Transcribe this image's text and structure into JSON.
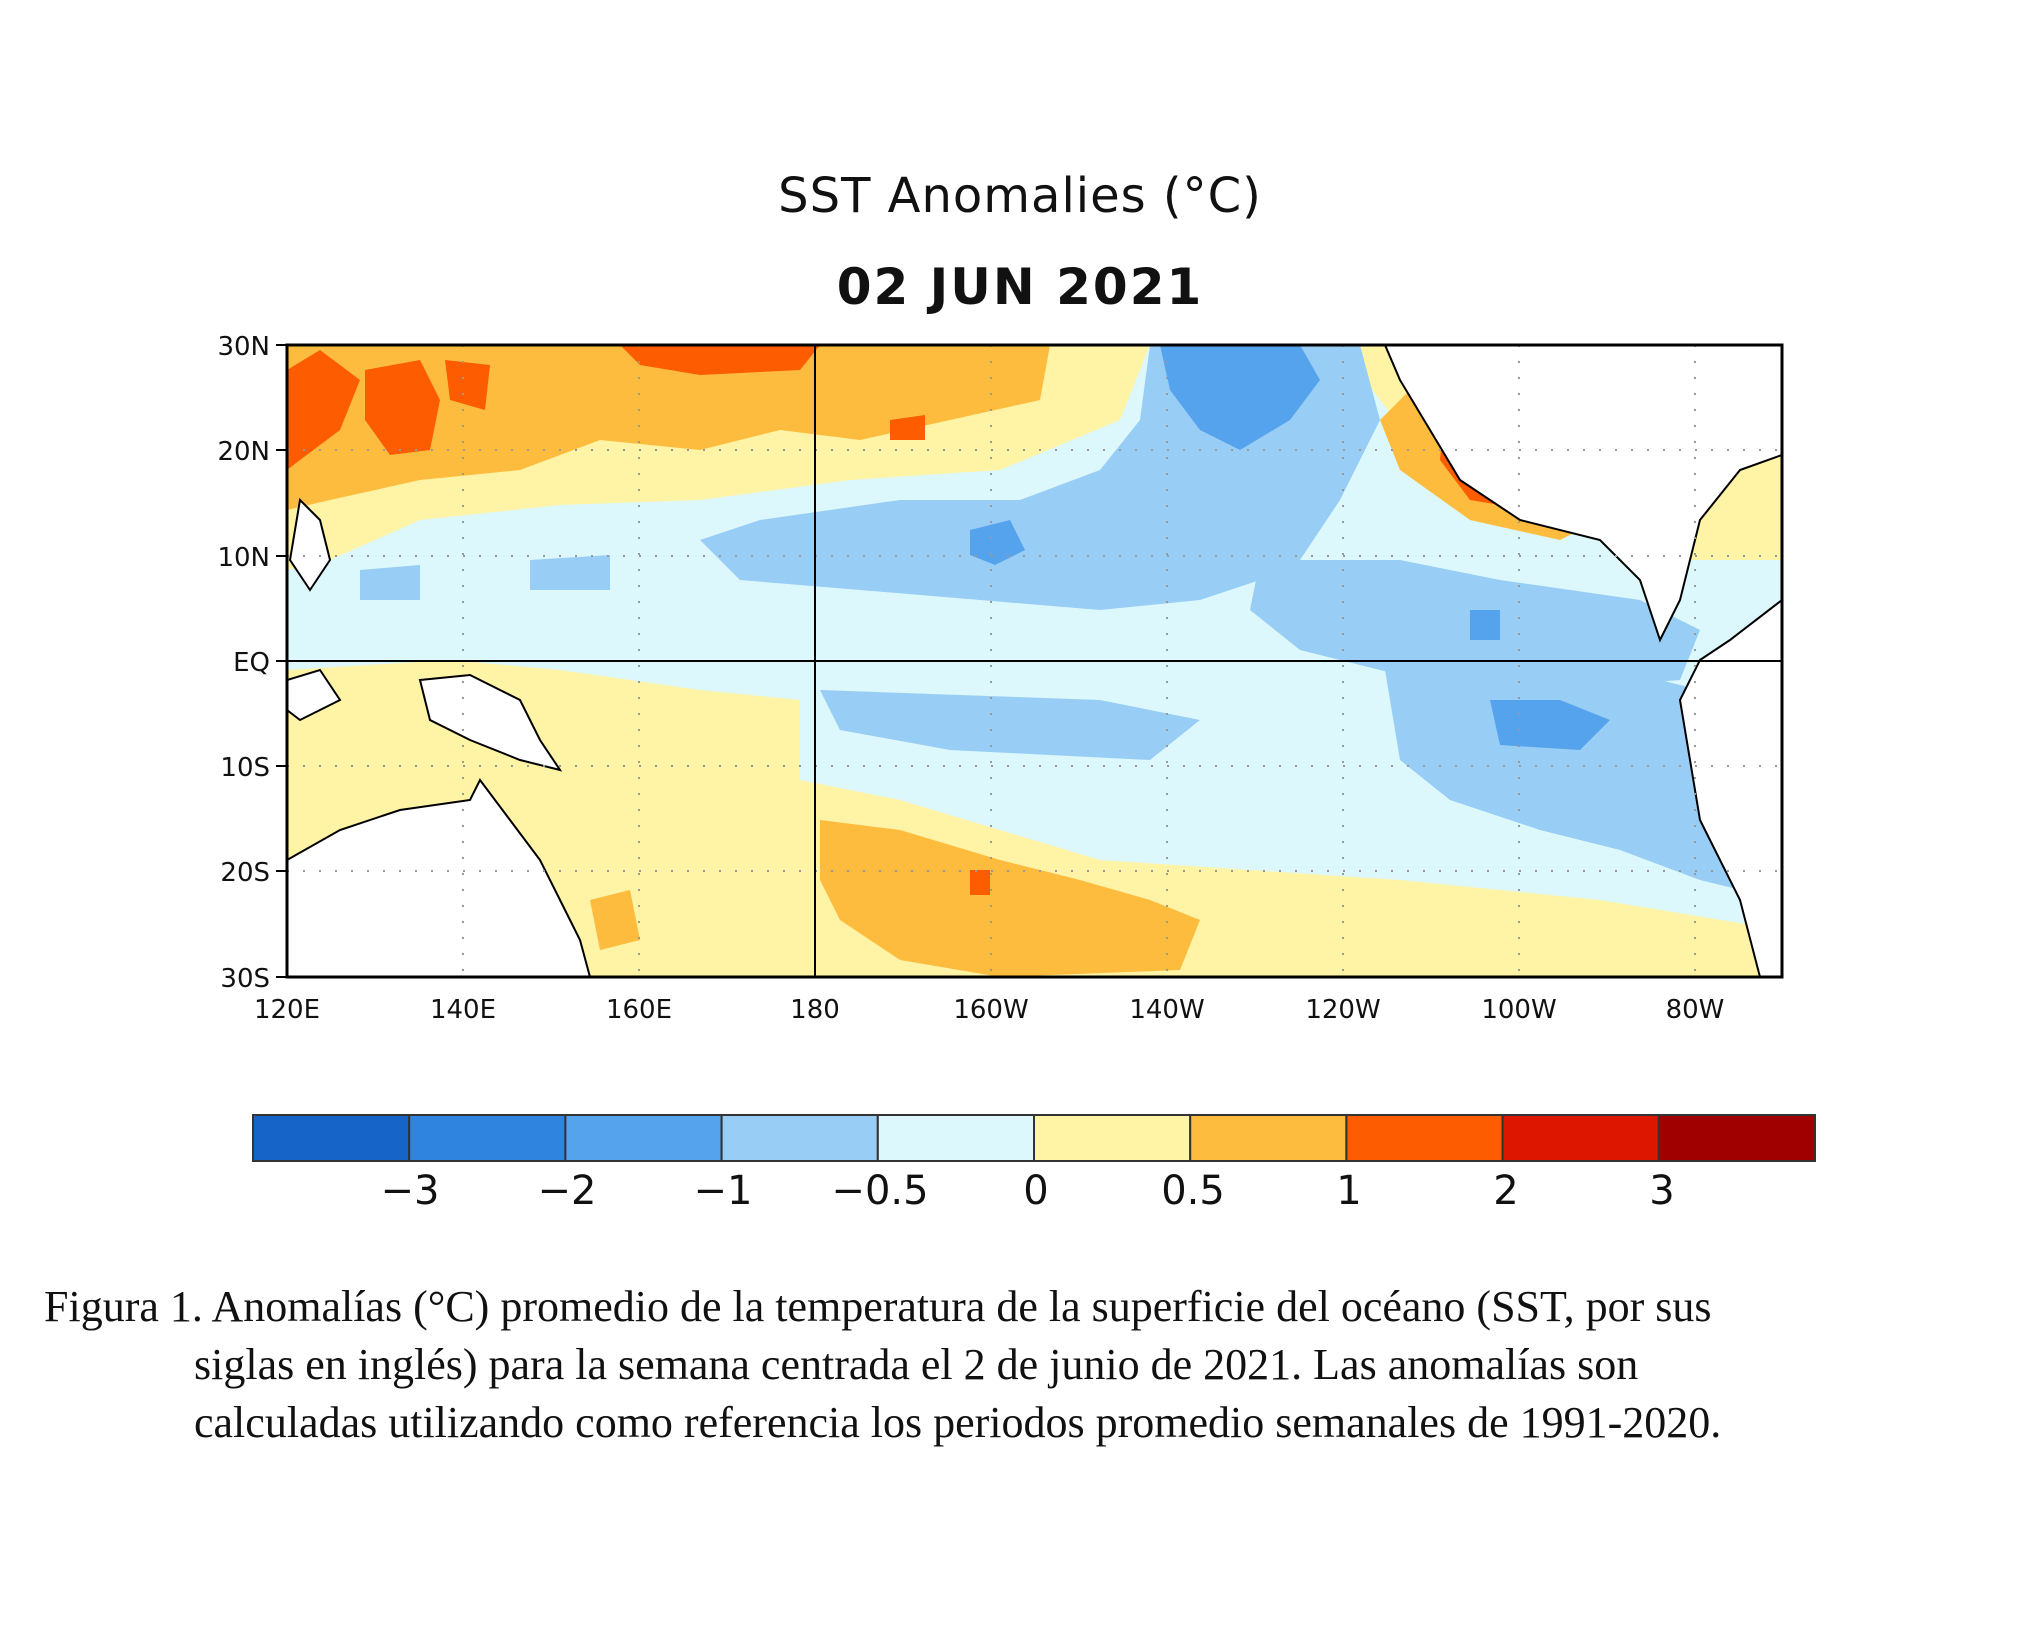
{
  "map": {
    "title": "SST Anomalies (°C)",
    "date": "02 JUN 2021",
    "lat_labels": [
      "30N",
      "20N",
      "10N",
      "EQ",
      "10S",
      "20S",
      "30S"
    ],
    "lon_labels": [
      "120E",
      "140E",
      "160E",
      "180",
      "160W",
      "140W",
      "120W",
      "100W",
      "80W"
    ],
    "lat_range": [
      -30,
      30
    ],
    "lon_range_east": [
      120,
      290
    ],
    "grid_style": "dotted",
    "reference_lines": [
      "Equator",
      "180"
    ]
  },
  "colorbar": {
    "tick_labels": [
      "−3",
      "−2",
      "−1",
      "−0.5",
      "0",
      "0.5",
      "1",
      "2",
      "3"
    ],
    "colors": [
      "#1764c9",
      "#2f84e0",
      "#55a3ed",
      "#98cdf5",
      "#dcf8fc",
      "#fff3a5",
      "#fdbc3e",
      "#fd5c00",
      "#dd1600",
      "#a00000"
    ],
    "land_color": "#ffffff"
  },
  "caption": {
    "line1": "Figura 1. Anomalías (°C) promedio de la temperatura de la superficie del océano (SST, por sus",
    "line2": "siglas en inglés) para la semana centrada el 2 de junio de 2021. Las anomalías son",
    "line3": "calculadas utilizando como referencia los periodos promedio semanales de 1991-2020."
  }
}
